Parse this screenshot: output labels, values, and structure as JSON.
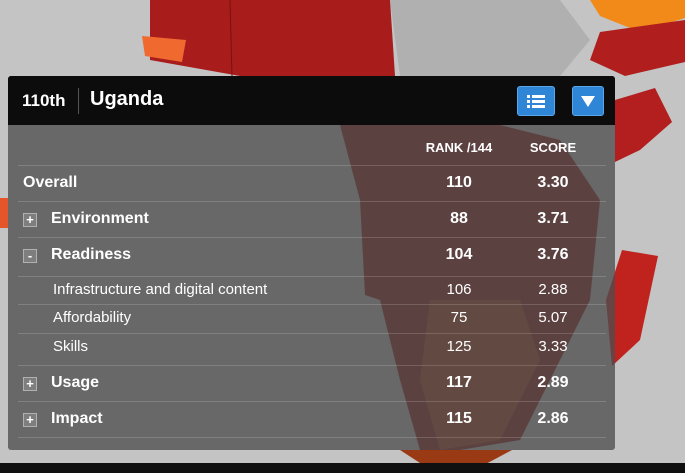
{
  "header": {
    "rank": "110th",
    "country": "Uganda"
  },
  "table": {
    "columns": [
      "RANK /144",
      "SCORE"
    ],
    "rows": [
      {
        "toggle": null,
        "label": "Overall",
        "rank": "110",
        "score": "3.30",
        "level": "main"
      },
      {
        "toggle": "+",
        "label": "Environment",
        "rank": "88",
        "score": "3.71",
        "level": "main"
      },
      {
        "toggle": "-",
        "label": "Readiness",
        "rank": "104",
        "score": "3.76",
        "level": "main"
      },
      {
        "toggle": null,
        "label": "Infrastructure and digital content",
        "rank": "106",
        "score": "2.88",
        "level": "sub"
      },
      {
        "toggle": null,
        "label": "Affordability",
        "rank": "75",
        "score": "5.07",
        "level": "sub"
      },
      {
        "toggle": null,
        "label": "Skills",
        "rank": "125",
        "score": "3.33",
        "level": "sub"
      },
      {
        "toggle": "+",
        "label": "Usage",
        "rank": "117",
        "score": "2.89",
        "level": "main"
      },
      {
        "toggle": "+",
        "label": "Impact",
        "rank": "115",
        "score": "2.86",
        "level": "main"
      }
    ]
  }
}
